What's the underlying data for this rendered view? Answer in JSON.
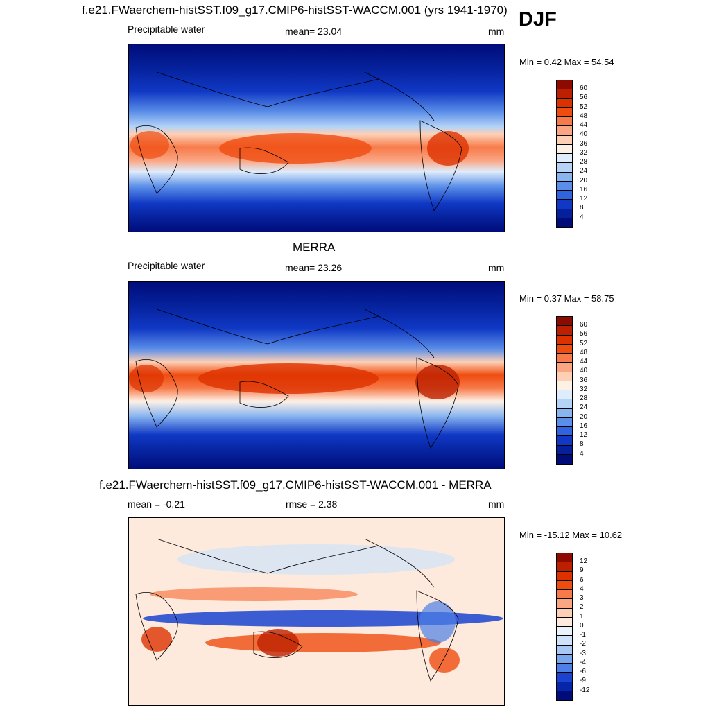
{
  "season": "DJF",
  "panels": [
    {
      "title": "f.e21.FWaerchem-histSST.f09_g17.CMIP6-histSST-WACCM.001 (yrs 1941-1970)",
      "left_label": "Precipitable water",
      "center_label": "mean=  23.04",
      "unit": "mm",
      "minmax": "Min =   0.42 Max =  54.54",
      "levels": [
        "60",
        "56",
        "52",
        "48",
        "44",
        "40",
        "36",
        "32",
        "28",
        "24",
        "20",
        "16",
        "12",
        "8",
        "4"
      ],
      "colors": [
        "#8c0a00",
        "#bd2000",
        "#dd3200",
        "#ef4c10",
        "#f77b4a",
        "#fba583",
        "#fdd0b5",
        "#fdf1e6",
        "#deecfb",
        "#b4d3f7",
        "#88b4f0",
        "#5a8ee8",
        "#2f63df",
        "#1038c4",
        "#05209a",
        "#000c7a"
      ]
    },
    {
      "title": "MERRA",
      "left_label": "Precipitable water",
      "center_label": "mean=  23.26",
      "unit": "mm",
      "minmax": "Min =   0.37 Max =  58.75",
      "levels": [
        "60",
        "56",
        "52",
        "48",
        "44",
        "40",
        "36",
        "32",
        "28",
        "24",
        "20",
        "16",
        "12",
        "8",
        "4"
      ],
      "colors": [
        "#8c0a00",
        "#bd2000",
        "#dd3200",
        "#ef4c10",
        "#f77b4a",
        "#fba583",
        "#fdd0b5",
        "#fdf1e6",
        "#deecfb",
        "#b4d3f7",
        "#88b4f0",
        "#5a8ee8",
        "#2f63df",
        "#1038c4",
        "#05209a",
        "#000c7a"
      ]
    },
    {
      "title": "f.e21.FWaerchem-histSST.f09_g17.CMIP6-histSST-WACCM.001 - MERRA",
      "left_label": "mean =  -0.21",
      "center_label": "rmse =   2.38",
      "unit": "mm",
      "minmax": "Min = -15.12 Max =  10.62",
      "levels": [
        "12",
        "9",
        "6",
        "4",
        "3",
        "2",
        "1",
        "0",
        "-1",
        "-2",
        "-3",
        "-4",
        "-6",
        "-9",
        "-12"
      ],
      "colors": [
        "#8c0a00",
        "#bd2000",
        "#dd3200",
        "#ef4c10",
        "#f77b4a",
        "#fba583",
        "#fdd0b5",
        "#fdeadc",
        "#eaf2fc",
        "#cfe2fa",
        "#a7c8f4",
        "#7aa6ee",
        "#4d7fe6",
        "#1a44d0",
        "#0526a8",
        "#000c7a"
      ]
    }
  ]
}
